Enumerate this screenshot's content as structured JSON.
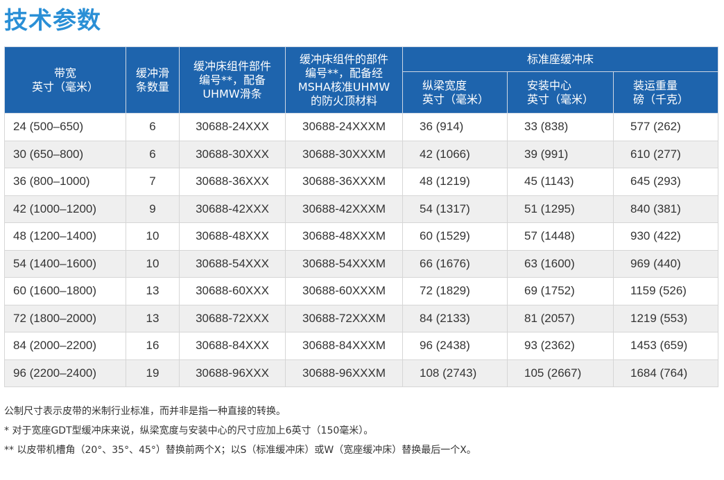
{
  "title": "技术参数",
  "table": {
    "headers": {
      "belt_width": "带宽\n英寸（毫米）",
      "slider_count": "缓冲滑\n条数量",
      "part_uhmw": "缓冲床组件部件\n编号**，配备\nUHMW滑条",
      "part_msha": "缓冲床组件的部件\n编号**，配备经\nMSHA核准UHMW\n的防火顶材料",
      "group_standard": "标准座缓冲床",
      "stringer_width": "纵梁宽度\n英寸（毫米）",
      "mounting_center": "安装中心\n英寸（毫米）",
      "shipping_weight": "装运重量\n磅（千克）"
    },
    "rows": [
      [
        "24 (500–650)",
        "6",
        "30688-24XXX",
        "30688-24XXXM",
        "36 (914)",
        "33 (838)",
        "577 (262)"
      ],
      [
        "30 (650–800)",
        "6",
        "30688-30XXX",
        "30688-30XXXM",
        "42 (1066)",
        "39 (991)",
        "610 (277)"
      ],
      [
        "36 (800–1000)",
        "7",
        "30688-36XXX",
        "30688-36XXXM",
        "48 (1219)",
        "45 (1143)",
        "645 (293)"
      ],
      [
        "42 (1000–1200)",
        "9",
        "30688-42XXX",
        "30688-42XXXM",
        "54 (1317)",
        "51 (1295)",
        "840 (381)"
      ],
      [
        "48 (1200–1400)",
        "10",
        "30688-48XXX",
        "30688-48XXXM",
        "60 (1529)",
        "57 (1448)",
        "930 (422)"
      ],
      [
        "54 (1400–1600)",
        "10",
        "30688-54XXX",
        "30688-54XXXM",
        "66 (1676)",
        "63 (1600)",
        "969 (440)"
      ],
      [
        "60 (1600–1800)",
        "13",
        "30688-60XXX",
        "30688-60XXXM",
        "72 (1829)",
        "69 (1752)",
        "1159 (526)"
      ],
      [
        "72 (1800–2000)",
        "13",
        "30688-72XXX",
        "30688-72XXXM",
        "84 (2133)",
        "81 (2057)",
        "1219 (553)"
      ],
      [
        "84 (2000–2200)",
        "16",
        "30688-84XXX",
        "30688-84XXXM",
        "96 (2438)",
        "93 (2362)",
        "1453 (659)"
      ],
      [
        "96 (2200–2400)",
        "19",
        "30688-96XXX",
        "30688-96XXXM",
        "108 (2743)",
        "105 (2667)",
        "1684 (764)"
      ]
    ]
  },
  "notes": [
    "公制尺寸表示皮带的米制行业标准，而并非是指一种直接的转换。",
    "* 对于宽座GDT型缓冲床来说，纵梁宽度与安装中心的尺寸应加上6英寸（150毫米）。",
    "** 以皮带机槽角（20°、35°、45°）替换前两个X；以S（标准缓冲床）或W（宽座缓冲床）替换最后一个X。"
  ],
  "colors": {
    "header_bg": "#1e64ad",
    "title": "#2a8fd6",
    "row_alt": "#efefef"
  }
}
